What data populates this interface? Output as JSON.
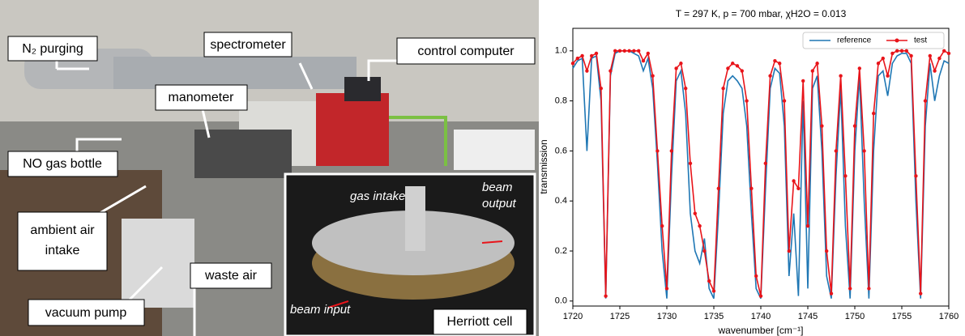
{
  "photo": {
    "labels": [
      "N₂ purging",
      "spectrometer",
      "control computer",
      "manometer",
      "NO gas bottle",
      "vacuum pump",
      "waste air",
      "Herriott cell"
    ],
    "ambient_label": [
      "ambient air",
      "intake"
    ],
    "inset_labels": [
      "gas intake",
      "beam input"
    ],
    "beam_output": [
      "beam",
      "output"
    ]
  },
  "chart_data": {
    "type": "line",
    "title": "T = 297 K, p = 700 mbar, χH2O = 0.013",
    "xlabel": "wavenumber [cm⁻¹]",
    "ylabel": "transmission",
    "x": [
      1720,
      1720.5,
      1721,
      1721.5,
      1722,
      1722.5,
      1723,
      1723.5,
      1724,
      1724.5,
      1725,
      1725.5,
      1726,
      1726.5,
      1727,
      1727.5,
      1728,
      1728.5,
      1729,
      1729.5,
      1730,
      1730.5,
      1731,
      1731.5,
      1732,
      1732.5,
      1733,
      1733.5,
      1734,
      1734.5,
      1735,
      1735.5,
      1736,
      1736.5,
      1737,
      1737.5,
      1738,
      1738.5,
      1739,
      1739.5,
      1740,
      1740.5,
      1741,
      1741.5,
      1742,
      1742.5,
      1743,
      1743.5,
      1744,
      1744.5,
      1745,
      1745.5,
      1746,
      1746.5,
      1747,
      1747.5,
      1748,
      1748.5,
      1749,
      1749.5,
      1750,
      1750.5,
      1751,
      1751.5,
      1752,
      1752.5,
      1753,
      1753.5,
      1754,
      1754.5,
      1755,
      1755.5,
      1756,
      1756.5,
      1757,
      1757.5,
      1758,
      1758.5,
      1759,
      1759.5,
      1760
    ],
    "series": [
      {
        "name": "reference",
        "color": "#1f77b4",
        "marker": false,
        "values": [
          0.93,
          0.96,
          0.97,
          0.6,
          0.97,
          0.98,
          0.8,
          0.01,
          0.9,
          0.99,
          1.0,
          1.0,
          1.0,
          0.99,
          0.98,
          0.92,
          0.97,
          0.85,
          0.55,
          0.2,
          0.01,
          0.5,
          0.88,
          0.92,
          0.75,
          0.35,
          0.2,
          0.15,
          0.25,
          0.05,
          0.01,
          0.35,
          0.75,
          0.88,
          0.9,
          0.88,
          0.85,
          0.7,
          0.35,
          0.05,
          0.01,
          0.45,
          0.85,
          0.93,
          0.91,
          0.7,
          0.1,
          0.35,
          0.02,
          0.8,
          0.05,
          0.85,
          0.9,
          0.6,
          0.1,
          0.01,
          0.5,
          0.85,
          0.3,
          0.01,
          0.6,
          0.9,
          0.4,
          0.01,
          0.6,
          0.9,
          0.92,
          0.82,
          0.95,
          0.98,
          0.99,
          0.99,
          0.95,
          0.4,
          0.01,
          0.7,
          0.95,
          0.8,
          0.9,
          0.96,
          0.95
        ]
      },
      {
        "name": "test",
        "color": "#e8141a",
        "marker": true,
        "values": [
          0.95,
          0.97,
          0.98,
          0.92,
          0.98,
          0.99,
          0.85,
          0.02,
          0.92,
          1.0,
          1.0,
          1.0,
          1.0,
          1.0,
          1.0,
          0.96,
          0.99,
          0.9,
          0.6,
          0.3,
          0.05,
          0.6,
          0.93,
          0.95,
          0.85,
          0.55,
          0.35,
          0.3,
          0.2,
          0.08,
          0.04,
          0.45,
          0.85,
          0.93,
          0.95,
          0.94,
          0.92,
          0.8,
          0.45,
          0.1,
          0.02,
          0.55,
          0.9,
          0.96,
          0.95,
          0.8,
          0.2,
          0.48,
          0.45,
          0.88,
          0.3,
          0.92,
          0.95,
          0.7,
          0.2,
          0.03,
          0.6,
          0.9,
          0.5,
          0.05,
          0.7,
          0.93,
          0.6,
          0.05,
          0.75,
          0.95,
          0.97,
          0.9,
          0.99,
          1.0,
          1.0,
          1.0,
          0.98,
          0.5,
          0.03,
          0.8,
          0.98,
          0.92,
          0.97,
          1.0,
          0.99
        ]
      }
    ],
    "xlim": [
      1720,
      1760
    ],
    "xticks": [
      1720,
      1725,
      1730,
      1735,
      1740,
      1745,
      1750,
      1755,
      1760
    ],
    "ylim": [
      -0.02,
      1.09
    ],
    "yticks": [
      {
        "value": 0,
        "label": "0.0"
      },
      {
        "value": 0.2,
        "label": "0.2"
      },
      {
        "value": 0.4,
        "label": "0.4"
      },
      {
        "value": 0.6,
        "label": "0.6"
      },
      {
        "value": 0.8,
        "label": "0.8"
      },
      {
        "value": 1.0,
        "label": "1.0"
      }
    ],
    "legend": "upper right",
    "grid": false
  }
}
